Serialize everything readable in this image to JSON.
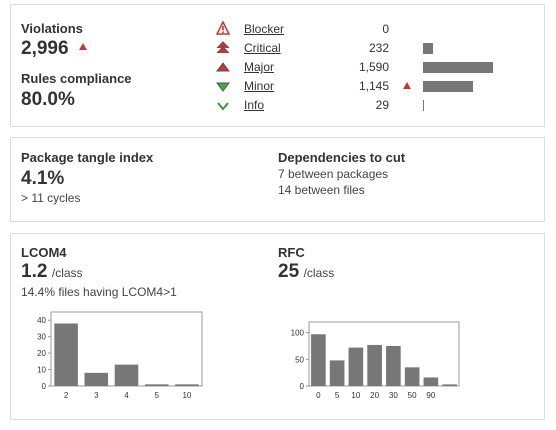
{
  "violations": {
    "label": "Violations",
    "value": "2,996",
    "trend": "up",
    "compliance_label": "Rules compliance",
    "compliance_value": "80.0%",
    "severities": [
      {
        "name": "Blocker",
        "count": "0",
        "count_value": 0,
        "icon": "blocker-icon",
        "trend": ""
      },
      {
        "name": "Critical",
        "count": "232",
        "count_value": 232,
        "icon": "critical-icon",
        "trend": ""
      },
      {
        "name": "Major",
        "count": "1,590",
        "count_value": 1590,
        "icon": "major-icon",
        "trend": ""
      },
      {
        "name": "Minor",
        "count": "1,145",
        "count_value": 1145,
        "icon": "minor-icon",
        "trend": "up"
      },
      {
        "name": "Info",
        "count": "29",
        "count_value": 29,
        "icon": "info-icon",
        "trend": ""
      }
    ]
  },
  "tangle": {
    "label": "Package tangle index",
    "value": "4.1%",
    "cycles": "> 11 cycles",
    "deps_label": "Dependencies to cut",
    "deps_packages": "7 between packages",
    "deps_files": "14 between files"
  },
  "lcom4": {
    "label": "LCOM4",
    "value": "1.2",
    "unit": "/class",
    "note": "14.4% files having LCOM4>1"
  },
  "rfc": {
    "label": "RFC",
    "value": "25",
    "unit": "/class"
  },
  "colors": {
    "bar": "#777777",
    "trend_up": "#cc3333",
    "panel_border": "#dcdcdc"
  },
  "chart_data": [
    {
      "type": "bar",
      "categories": [
        "2",
        "3",
        "4",
        "5",
        "10"
      ],
      "values": [
        38,
        8,
        13,
        1,
        1
      ],
      "ylim": [
        0,
        45
      ],
      "yticks": [
        0,
        10,
        20,
        30,
        40
      ]
    },
    {
      "type": "bar",
      "categories": [
        "0",
        "5",
        "10",
        "20",
        "30",
        "50",
        "90",
        ""
      ],
      "values": [
        97,
        48,
        72,
        77,
        75,
        35,
        16,
        3
      ],
      "ylim": [
        0,
        120
      ],
      "yticks": [
        0,
        50,
        100
      ]
    }
  ]
}
